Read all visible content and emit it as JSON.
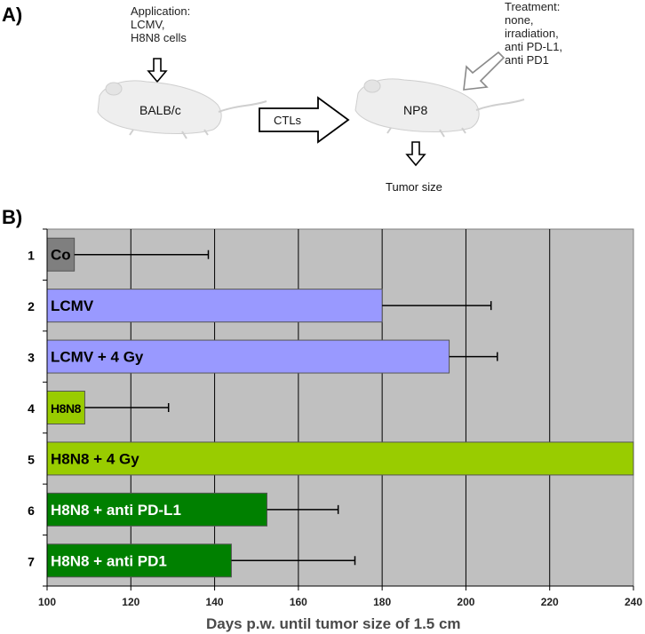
{
  "panel_a": {
    "label": "A)",
    "application_text": "Application:\nLCMV,\nH8N8 cells",
    "mouse1_label": "BALB/c",
    "transfer_label": "CTLs",
    "mouse2_label": "NP8",
    "treatment_text": "Treatment:\nnone,\nirradiation,\nanti PD-L1,\nanti PD1",
    "readout_label": "Tumor size"
  },
  "panel_b": {
    "label": "B)"
  },
  "colors": {
    "gray": "#7f7f7f",
    "lavender": "#9999ff",
    "lime": "#99cc00",
    "green": "#008000",
    "plot_bg": "#c0c0c0"
  },
  "chart_data": {
    "type": "bar",
    "orientation": "horizontal",
    "xlabel": "Days p.w. until tumor size of 1.5 cm",
    "ylabel": "",
    "xlim": [
      100,
      240
    ],
    "xticks": [
      100,
      120,
      140,
      160,
      180,
      200,
      220,
      240
    ],
    "grid": true,
    "legend": "none",
    "bars": [
      {
        "row": "1",
        "label": "Co",
        "value": 106.5,
        "error_high": 138.5,
        "color": "#7f7f7f",
        "text_color": "#000000"
      },
      {
        "row": "2",
        "label": "LCMV",
        "value": 180,
        "error_high": 206,
        "color": "#9999ff",
        "text_color": "#000000"
      },
      {
        "row": "3",
        "label": "LCMV + 4 Gy",
        "value": 196,
        "error_high": 207.5,
        "color": "#9999ff",
        "text_color": "#000000"
      },
      {
        "row": "4",
        "label": "H8N8",
        "value": 109,
        "error_high": 129,
        "color": "#99cc00",
        "text_color": "#000000"
      },
      {
        "row": "5",
        "label": "H8N8 + 4 Gy",
        "value": 240,
        "error_high": null,
        "color": "#99cc00",
        "text_color": "#000000"
      },
      {
        "row": "6",
        "label": "H8N8 + anti PD-L1",
        "value": 152.5,
        "error_high": 169.5,
        "color": "#008000",
        "text_color": "#ffffff"
      },
      {
        "row": "7",
        "label": "H8N8 + anti PD1",
        "value": 144,
        "error_high": 173.5,
        "color": "#008000",
        "text_color": "#ffffff"
      }
    ]
  }
}
